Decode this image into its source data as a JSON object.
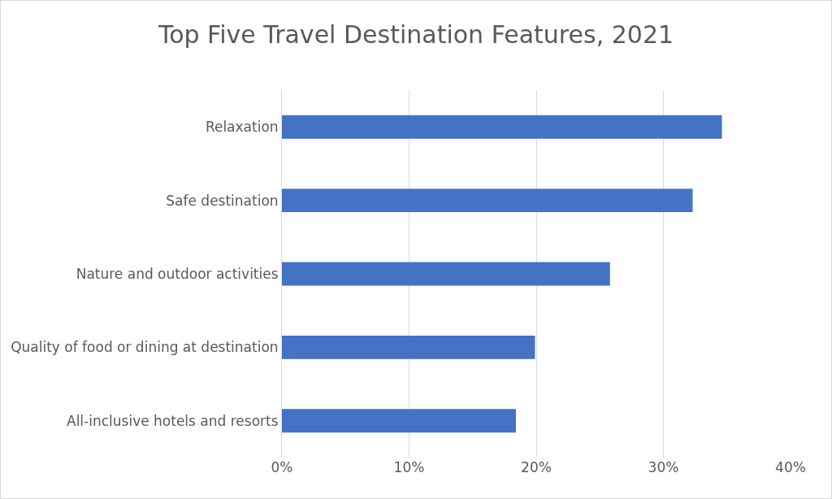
{
  "chart_data": {
    "type": "bar",
    "orientation": "horizontal",
    "title": "Top Five Travel Destination Features, 2021",
    "categories": [
      "Relaxation",
      "Safe destination",
      "Nature and outdoor activities",
      "Quality of food or dining at destination",
      "All-inclusive hotels and resorts"
    ],
    "values": [
      34.6,
      32.3,
      25.8,
      19.9,
      18.4
    ],
    "color": "#4472c4",
    "xlim": [
      0,
      40
    ],
    "xticks": [
      {
        "value": 0,
        "label": "0%"
      },
      {
        "value": 10,
        "label": "10%"
      },
      {
        "value": 20,
        "label": "20%"
      },
      {
        "value": 30,
        "label": "30%"
      },
      {
        "value": 40,
        "label": "40%"
      }
    ],
    "grid": "x"
  }
}
